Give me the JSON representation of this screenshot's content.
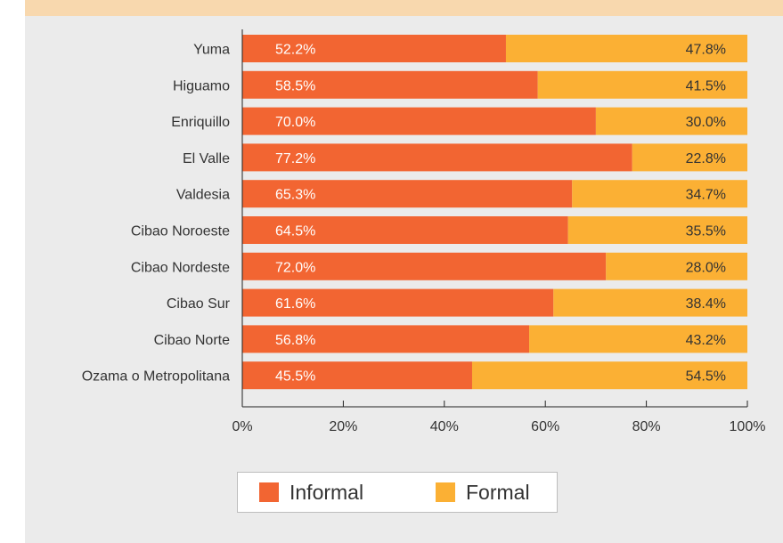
{
  "chart_data": {
    "type": "bar",
    "orientation": "horizontal",
    "stacked": true,
    "categories": [
      "Yuma",
      "Higuamo",
      "Enriquillo",
      "El Valle",
      "Valdesia",
      "Cibao Noroeste",
      "Cibao Nordeste",
      "Cibao Sur",
      "Cibao Norte",
      "Ozama o Metropolitana"
    ],
    "series": [
      {
        "name": "Informal",
        "color": "#f26532",
        "values": [
          52.2,
          58.5,
          70.0,
          77.2,
          65.3,
          64.5,
          72.0,
          61.6,
          56.8,
          45.5
        ],
        "labels": [
          "52.2%",
          "58.5%",
          "70.0%",
          "77.2%",
          "65.3%",
          "64.5%",
          "72.0%",
          "61.6%",
          "56.8%",
          "45.5%"
        ]
      },
      {
        "name": "Formal",
        "color": "#fbb034",
        "values": [
          47.8,
          41.5,
          30.0,
          22.8,
          34.7,
          35.5,
          28.0,
          38.4,
          43.2,
          54.5
        ],
        "labels": [
          "47.8%",
          "41.5%",
          "30.0%",
          "22.8%",
          "34.7%",
          "35.5%",
          "28.0%",
          "38.4%",
          "43.2%",
          "54.5%"
        ]
      }
    ],
    "xlim": [
      0,
      100
    ],
    "xticks": [
      "0%",
      "20%",
      "40%",
      "60%",
      "80%",
      "100%"
    ],
    "grid": false,
    "legend_position": "bottom"
  }
}
